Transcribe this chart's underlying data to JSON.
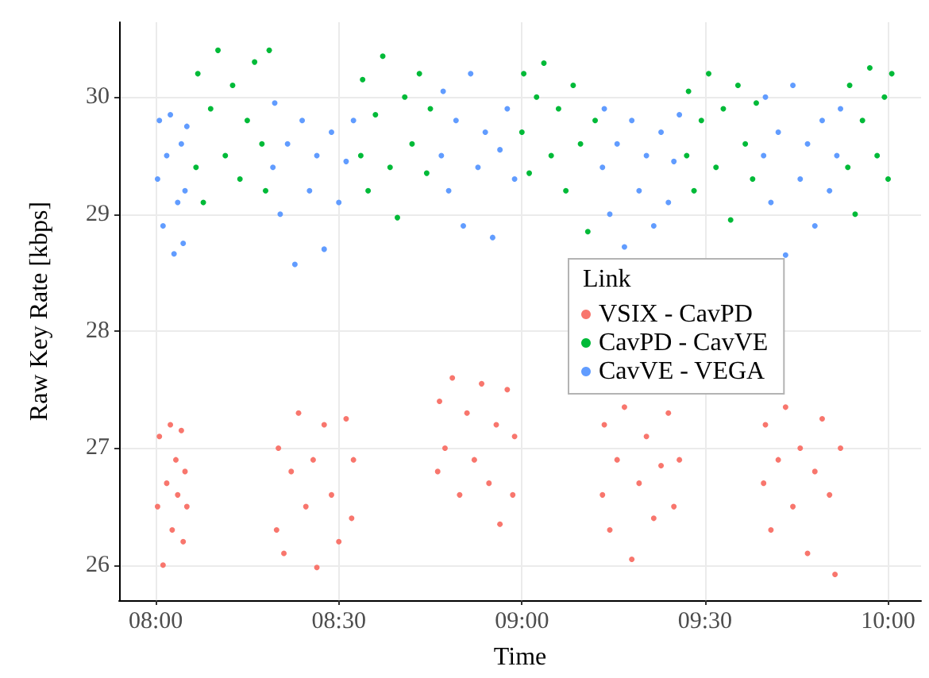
{
  "chart_data": {
    "type": "scatter",
    "xlabel": "Time",
    "ylabel": "Raw Key Rate [kbps]",
    "legend_title": "Link",
    "legend": "right",
    "grid": true,
    "marker": "circle",
    "xlim": [
      7.9,
      10.09
    ],
    "ylim": [
      25.7,
      30.64
    ],
    "xticks": [
      {
        "value": 8,
        "label": "08:00"
      },
      {
        "value": 8.5,
        "label": "08:30"
      },
      {
        "value": 9,
        "label": "09:00"
      },
      {
        "value": 9.5,
        "label": "09:30"
      },
      {
        "value": 10,
        "label": "10:00"
      }
    ],
    "yticks": [
      26,
      27,
      28,
      29,
      30
    ],
    "series": [
      {
        "name": "VSIX - CavPD",
        "color": "#f8766d",
        "x": [
          8.005,
          8.01,
          8.02,
          8.03,
          8.04,
          8.045,
          8.055,
          8.06,
          8.07,
          8.075,
          8.08,
          8.085,
          8.33,
          8.335,
          8.35,
          8.37,
          8.39,
          8.41,
          8.43,
          8.44,
          8.46,
          8.48,
          8.5,
          8.52,
          8.535,
          8.54,
          8.77,
          8.775,
          8.79,
          8.81,
          8.83,
          8.85,
          8.87,
          8.89,
          8.91,
          8.93,
          8.94,
          8.96,
          8.975,
          8.98,
          9.22,
          9.225,
          9.24,
          9.26,
          9.28,
          9.3,
          9.32,
          9.34,
          9.36,
          9.38,
          9.4,
          9.415,
          9.43,
          9.66,
          9.665,
          9.68,
          9.7,
          9.72,
          9.74,
          9.76,
          9.78,
          9.8,
          9.82,
          9.84,
          9.855,
          9.87
        ],
        "values": [
          26.5,
          27.1,
          26.0,
          26.7,
          27.2,
          26.3,
          26.9,
          26.6,
          27.15,
          26.2,
          26.8,
          26.5,
          26.3,
          27.0,
          26.1,
          26.8,
          27.3,
          26.5,
          26.9,
          25.98,
          27.2,
          26.6,
          26.2,
          27.25,
          26.4,
          26.9,
          26.8,
          27.4,
          27.0,
          27.6,
          26.6,
          27.3,
          26.9,
          27.55,
          26.7,
          27.2,
          26.35,
          27.5,
          26.6,
          27.1,
          26.6,
          27.2,
          26.3,
          26.9,
          27.35,
          26.05,
          26.7,
          27.1,
          26.4,
          26.85,
          27.3,
          26.5,
          26.9,
          26.7,
          27.2,
          26.3,
          26.9,
          27.35,
          26.5,
          27.0,
          26.1,
          26.8,
          27.25,
          26.6,
          25.92,
          27.0
        ]
      },
      {
        "name": "CavPD - CavVE",
        "color": "#00ba38",
        "x": [
          8.11,
          8.115,
          8.13,
          8.15,
          8.17,
          8.19,
          8.21,
          8.23,
          8.25,
          8.27,
          8.29,
          8.3,
          8.31,
          8.56,
          8.565,
          8.58,
          8.6,
          8.62,
          8.64,
          8.66,
          8.68,
          8.7,
          8.72,
          8.74,
          8.75,
          9.0,
          9.005,
          9.02,
          9.04,
          9.06,
          9.08,
          9.1,
          9.12,
          9.14,
          9.16,
          9.18,
          9.2,
          9.45,
          9.455,
          9.47,
          9.49,
          9.51,
          9.53,
          9.55,
          9.57,
          9.59,
          9.61,
          9.63,
          9.64,
          9.89,
          9.895,
          9.91,
          9.93,
          9.95,
          9.97,
          9.99,
          10.0,
          10.01
        ],
        "values": [
          29.4,
          30.2,
          29.1,
          29.9,
          30.4,
          29.5,
          30.1,
          29.3,
          29.8,
          30.3,
          29.6,
          29.2,
          30.4,
          29.5,
          30.15,
          29.2,
          29.85,
          30.35,
          29.4,
          28.97,
          30.0,
          29.6,
          30.2,
          29.35,
          29.9,
          29.7,
          30.2,
          29.35,
          30.0,
          30.29,
          29.5,
          29.9,
          29.2,
          30.1,
          29.6,
          28.85,
          29.8,
          29.5,
          30.05,
          29.2,
          29.8,
          30.2,
          29.4,
          29.9,
          28.95,
          30.1,
          29.6,
          29.3,
          29.95,
          29.4,
          30.1,
          29.0,
          29.8,
          30.25,
          29.5,
          30.0,
          29.3,
          30.2
        ]
      },
      {
        "name": "CavVE - VEGA",
        "color": "#619cff",
        "x": [
          8.005,
          8.01,
          8.02,
          8.03,
          8.04,
          8.05,
          8.06,
          8.07,
          8.08,
          8.085,
          8.075,
          8.32,
          8.325,
          8.34,
          8.36,
          8.38,
          8.4,
          8.42,
          8.44,
          8.46,
          8.48,
          8.5,
          8.52,
          8.54,
          8.78,
          8.785,
          8.8,
          8.82,
          8.84,
          8.86,
          8.88,
          8.9,
          8.92,
          8.94,
          8.96,
          8.98,
          9.22,
          9.225,
          9.24,
          9.26,
          9.28,
          9.3,
          9.32,
          9.34,
          9.36,
          9.38,
          9.4,
          9.415,
          9.43,
          9.66,
          9.665,
          9.68,
          9.7,
          9.72,
          9.74,
          9.76,
          9.78,
          9.8,
          9.82,
          9.84,
          9.86,
          9.87
        ],
        "values": [
          29.3,
          29.8,
          28.9,
          29.5,
          29.85,
          28.66,
          29.1,
          29.6,
          29.2,
          29.75,
          28.75,
          29.4,
          29.95,
          29.0,
          29.6,
          28.57,
          29.8,
          29.2,
          29.5,
          28.7,
          29.7,
          29.1,
          29.45,
          29.8,
          29.5,
          30.05,
          29.2,
          29.8,
          28.9,
          30.2,
          29.4,
          29.7,
          28.8,
          29.55,
          29.9,
          29.3,
          29.4,
          29.9,
          29.0,
          29.6,
          28.72,
          29.8,
          29.2,
          29.5,
          28.9,
          29.7,
          29.1,
          29.45,
          29.85,
          29.5,
          30.0,
          29.1,
          29.7,
          28.65,
          30.1,
          29.3,
          29.6,
          28.9,
          29.8,
          29.2,
          29.5,
          29.9
        ]
      }
    ]
  }
}
